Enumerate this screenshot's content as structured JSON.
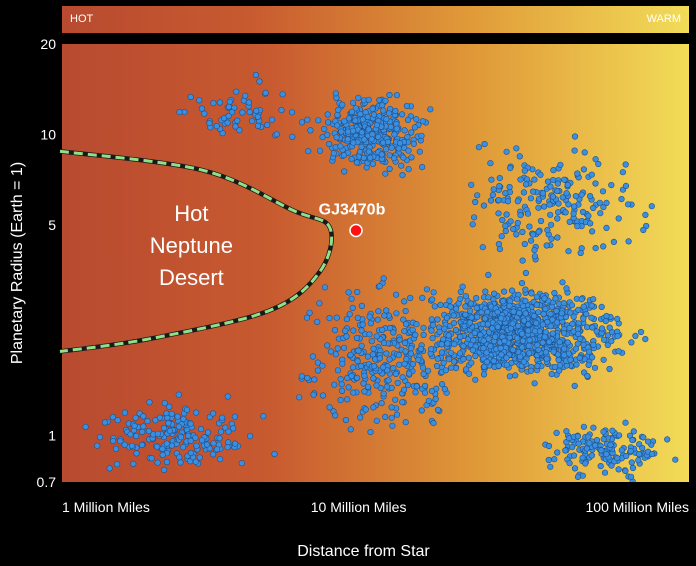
{
  "heat_bar": {
    "hot_label": "HOT",
    "warm_label": "WARM"
  },
  "chart_data": {
    "type": "scatter",
    "title": "",
    "xlabel": "Distance from Star",
    "ylabel": "Planetary Radius (Earth = 1)",
    "x_scale": "log",
    "y_scale": "log",
    "xlim": [
      1,
      130
    ],
    "ylim": [
      0.7,
      20
    ],
    "x_ticks": [
      {
        "value": 1,
        "label": "1 Million Miles"
      },
      {
        "value": 10,
        "label": "10 Million Miles"
      },
      {
        "value": 100,
        "label": "100 Million Miles"
      }
    ],
    "y_ticks": [
      {
        "value": 20,
        "label": "20"
      },
      {
        "value": 10,
        "label": "10"
      },
      {
        "value": 5,
        "label": "5"
      },
      {
        "value": 1,
        "label": "1"
      },
      {
        "value": 0.7,
        "label": "0.7"
      }
    ],
    "background_gradient": [
      "#b84a30",
      "#c85a30",
      "#e09a38",
      "#f2dc58"
    ],
    "point_color": "#3a8fe0",
    "highlight_color": "#ff1010",
    "region": {
      "label_lines": [
        "Hot",
        "Neptune",
        "Desert"
      ],
      "boundary_color": "#8ee08a",
      "boundary": [
        [
          1,
          8.8
        ],
        [
          3,
          7.6
        ],
        [
          6,
          5.6
        ],
        [
          8,
          4.9
        ],
        [
          7.4,
          3.5
        ],
        [
          5,
          2.6
        ],
        [
          2,
          2.1
        ],
        [
          1,
          1.9
        ]
      ]
    },
    "highlight": {
      "label": "GJ3470b",
      "x": 9.8,
      "y": 4.8
    },
    "series": [
      {
        "clusters": [
          {
            "x": [
              11,
              5.5,
              20
            ],
            "y": [
              10,
              6,
              14
            ],
            "n": 330
          },
          {
            "x": [
              35,
              12,
              130
            ],
            "y": [
              2.2,
              1.3,
              3.8
            ],
            "n": 1000
          },
          {
            "x": [
              12,
              6,
              40
            ],
            "y": [
              1.8,
              1.0,
              5.5
            ],
            "n": 300
          },
          {
            "x": [
              2.4,
              1,
              6
            ],
            "y": [
              1.0,
              0.72,
              1.6
            ],
            "n": 180
          },
          {
            "x": [
              45,
              15,
              130
            ],
            "y": [
              6,
              3.5,
              16
            ],
            "n": 200
          },
          {
            "x": [
              70,
              30,
              130
            ],
            "y": [
              0.9,
              0.7,
              1.3
            ],
            "n": 150
          },
          {
            "x": [
              4,
              2,
              8
            ],
            "y": [
              12,
              8,
              20
            ],
            "n": 60
          }
        ]
      }
    ]
  }
}
